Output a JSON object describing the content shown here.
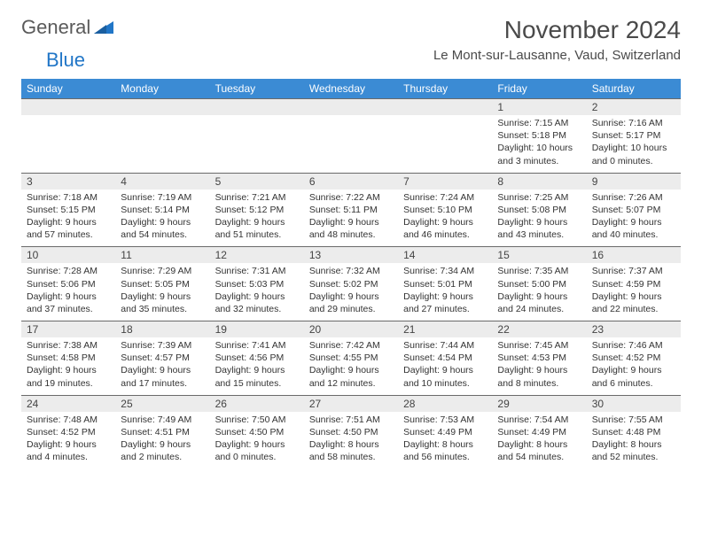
{
  "brand": {
    "name1": "General",
    "name2": "Blue"
  },
  "title": "November 2024",
  "location": "Le Mont-sur-Lausanne, Vaud, Switzerland",
  "colors": {
    "header_bg": "#3b8bd4",
    "header_text": "#ffffff",
    "numrow_bg": "#ececec",
    "border": "#6a6a6a",
    "text": "#333333"
  },
  "day_headers": [
    "Sunday",
    "Monday",
    "Tuesday",
    "Wednesday",
    "Thursday",
    "Friday",
    "Saturday"
  ],
  "weeks": [
    [
      null,
      null,
      null,
      null,
      null,
      {
        "n": "1",
        "sr": "7:15 AM",
        "ss": "5:18 PM",
        "dl": "10 hours and 3 minutes."
      },
      {
        "n": "2",
        "sr": "7:16 AM",
        "ss": "5:17 PM",
        "dl": "10 hours and 0 minutes."
      }
    ],
    [
      {
        "n": "3",
        "sr": "7:18 AM",
        "ss": "5:15 PM",
        "dl": "9 hours and 57 minutes."
      },
      {
        "n": "4",
        "sr": "7:19 AM",
        "ss": "5:14 PM",
        "dl": "9 hours and 54 minutes."
      },
      {
        "n": "5",
        "sr": "7:21 AM",
        "ss": "5:12 PM",
        "dl": "9 hours and 51 minutes."
      },
      {
        "n": "6",
        "sr": "7:22 AM",
        "ss": "5:11 PM",
        "dl": "9 hours and 48 minutes."
      },
      {
        "n": "7",
        "sr": "7:24 AM",
        "ss": "5:10 PM",
        "dl": "9 hours and 46 minutes."
      },
      {
        "n": "8",
        "sr": "7:25 AM",
        "ss": "5:08 PM",
        "dl": "9 hours and 43 minutes."
      },
      {
        "n": "9",
        "sr": "7:26 AM",
        "ss": "5:07 PM",
        "dl": "9 hours and 40 minutes."
      }
    ],
    [
      {
        "n": "10",
        "sr": "7:28 AM",
        "ss": "5:06 PM",
        "dl": "9 hours and 37 minutes."
      },
      {
        "n": "11",
        "sr": "7:29 AM",
        "ss": "5:05 PM",
        "dl": "9 hours and 35 minutes."
      },
      {
        "n": "12",
        "sr": "7:31 AM",
        "ss": "5:03 PM",
        "dl": "9 hours and 32 minutes."
      },
      {
        "n": "13",
        "sr": "7:32 AM",
        "ss": "5:02 PM",
        "dl": "9 hours and 29 minutes."
      },
      {
        "n": "14",
        "sr": "7:34 AM",
        "ss": "5:01 PM",
        "dl": "9 hours and 27 minutes."
      },
      {
        "n": "15",
        "sr": "7:35 AM",
        "ss": "5:00 PM",
        "dl": "9 hours and 24 minutes."
      },
      {
        "n": "16",
        "sr": "7:37 AM",
        "ss": "4:59 PM",
        "dl": "9 hours and 22 minutes."
      }
    ],
    [
      {
        "n": "17",
        "sr": "7:38 AM",
        "ss": "4:58 PM",
        "dl": "9 hours and 19 minutes."
      },
      {
        "n": "18",
        "sr": "7:39 AM",
        "ss": "4:57 PM",
        "dl": "9 hours and 17 minutes."
      },
      {
        "n": "19",
        "sr": "7:41 AM",
        "ss": "4:56 PM",
        "dl": "9 hours and 15 minutes."
      },
      {
        "n": "20",
        "sr": "7:42 AM",
        "ss": "4:55 PM",
        "dl": "9 hours and 12 minutes."
      },
      {
        "n": "21",
        "sr": "7:44 AM",
        "ss": "4:54 PM",
        "dl": "9 hours and 10 minutes."
      },
      {
        "n": "22",
        "sr": "7:45 AM",
        "ss": "4:53 PM",
        "dl": "9 hours and 8 minutes."
      },
      {
        "n": "23",
        "sr": "7:46 AM",
        "ss": "4:52 PM",
        "dl": "9 hours and 6 minutes."
      }
    ],
    [
      {
        "n": "24",
        "sr": "7:48 AM",
        "ss": "4:52 PM",
        "dl": "9 hours and 4 minutes."
      },
      {
        "n": "25",
        "sr": "7:49 AM",
        "ss": "4:51 PM",
        "dl": "9 hours and 2 minutes."
      },
      {
        "n": "26",
        "sr": "7:50 AM",
        "ss": "4:50 PM",
        "dl": "9 hours and 0 minutes."
      },
      {
        "n": "27",
        "sr": "7:51 AM",
        "ss": "4:50 PM",
        "dl": "8 hours and 58 minutes."
      },
      {
        "n": "28",
        "sr": "7:53 AM",
        "ss": "4:49 PM",
        "dl": "8 hours and 56 minutes."
      },
      {
        "n": "29",
        "sr": "7:54 AM",
        "ss": "4:49 PM",
        "dl": "8 hours and 54 minutes."
      },
      {
        "n": "30",
        "sr": "7:55 AM",
        "ss": "4:48 PM",
        "dl": "8 hours and 52 minutes."
      }
    ]
  ],
  "labels": {
    "sunrise": "Sunrise:",
    "sunset": "Sunset:",
    "daylight": "Daylight:"
  }
}
